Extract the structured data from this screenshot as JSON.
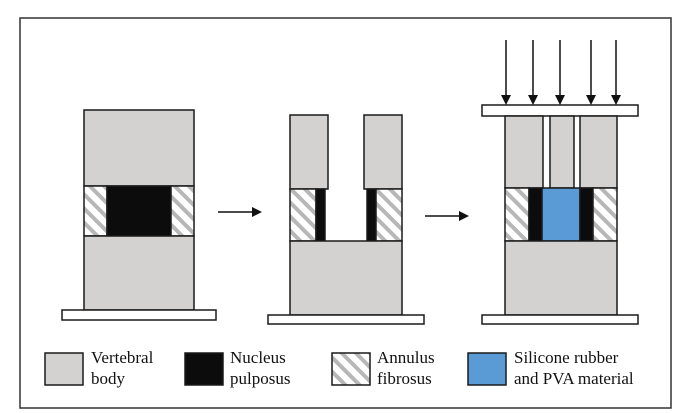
{
  "colors": {
    "vertebral_body": "#d4d1d1",
    "nucleus_pulposus": "#0c0c0c",
    "annulus_fibrosus": "#ffffff",
    "annulus_hatch": "#b7b7b7",
    "silicone_pva": "#5b9bd5",
    "outline": "#1a1a1a"
  },
  "diagram": {
    "stages": [
      "intact-disc",
      "nucleus-removed",
      "implant-under-load"
    ],
    "load_arrow_count": 5
  },
  "legend": {
    "items": [
      {
        "key": "vertebral_body",
        "label": "Vertebral\nbody"
      },
      {
        "key": "nucleus_pulposus",
        "label": "Nucleus\npulposus"
      },
      {
        "key": "annulus_fibrosus",
        "label": "Annulus\nfibrosus"
      },
      {
        "key": "silicone_pva",
        "label": "Silicone rubber\nand PVA material"
      }
    ]
  }
}
